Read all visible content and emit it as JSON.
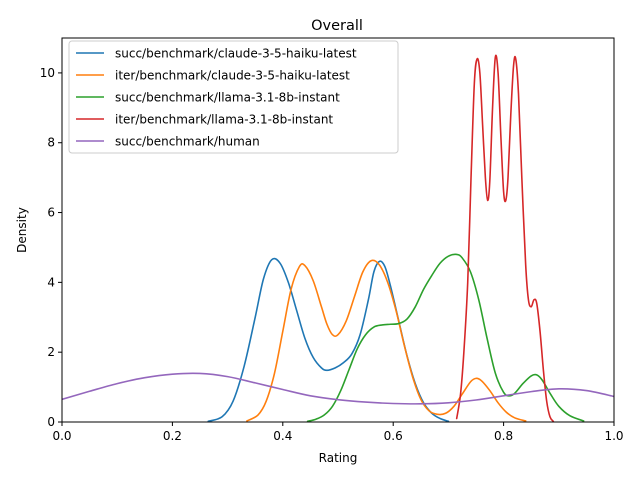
{
  "chart_data": {
    "type": "line",
    "title": "Overall",
    "xlabel": "Rating",
    "ylabel": "Density",
    "xlim": [
      0.0,
      1.0
    ],
    "ylim": [
      0,
      11
    ],
    "xticks": [
      "0.0",
      "0.2",
      "0.4",
      "0.6",
      "0.8",
      "1.0"
    ],
    "yticks": [
      "0",
      "2",
      "4",
      "6",
      "8",
      "10"
    ],
    "grid": false,
    "legend_position": "top-left",
    "series": [
      {
        "name": "succ/benchmark/claude-3-5-haiku-latest",
        "color": "#1f77b4",
        "points": [
          [
            0.265,
            0.02
          ],
          [
            0.29,
            0.15
          ],
          [
            0.31,
            0.6
          ],
          [
            0.33,
            1.6
          ],
          [
            0.35,
            3.0
          ],
          [
            0.365,
            4.1
          ],
          [
            0.38,
            4.65
          ],
          [
            0.395,
            4.55
          ],
          [
            0.41,
            4.0
          ],
          [
            0.425,
            3.2
          ],
          [
            0.44,
            2.4
          ],
          [
            0.455,
            1.85
          ],
          [
            0.47,
            1.55
          ],
          [
            0.48,
            1.48
          ],
          [
            0.495,
            1.55
          ],
          [
            0.51,
            1.7
          ],
          [
            0.525,
            1.95
          ],
          [
            0.54,
            2.5
          ],
          [
            0.555,
            3.5
          ],
          [
            0.565,
            4.3
          ],
          [
            0.575,
            4.6
          ],
          [
            0.585,
            4.45
          ],
          [
            0.595,
            3.9
          ],
          [
            0.61,
            2.9
          ],
          [
            0.625,
            1.9
          ],
          [
            0.64,
            1.1
          ],
          [
            0.655,
            0.55
          ],
          [
            0.67,
            0.25
          ],
          [
            0.685,
            0.1
          ],
          [
            0.7,
            0.02
          ]
        ]
      },
      {
        "name": "iter/benchmark/claude-3-5-haiku-latest",
        "color": "#ff7f0e",
        "points": [
          [
            0.335,
            0.03
          ],
          [
            0.355,
            0.2
          ],
          [
            0.37,
            0.6
          ],
          [
            0.385,
            1.4
          ],
          [
            0.4,
            2.6
          ],
          [
            0.415,
            3.8
          ],
          [
            0.43,
            4.45
          ],
          [
            0.44,
            4.48
          ],
          [
            0.455,
            4.05
          ],
          [
            0.47,
            3.3
          ],
          [
            0.48,
            2.8
          ],
          [
            0.49,
            2.5
          ],
          [
            0.5,
            2.5
          ],
          [
            0.515,
            2.9
          ],
          [
            0.53,
            3.6
          ],
          [
            0.545,
            4.3
          ],
          [
            0.56,
            4.62
          ],
          [
            0.575,
            4.5
          ],
          [
            0.59,
            4.0
          ],
          [
            0.605,
            3.2
          ],
          [
            0.62,
            2.2
          ],
          [
            0.635,
            1.3
          ],
          [
            0.65,
            0.65
          ],
          [
            0.665,
            0.32
          ],
          [
            0.68,
            0.22
          ],
          [
            0.695,
            0.25
          ],
          [
            0.71,
            0.45
          ],
          [
            0.725,
            0.8
          ],
          [
            0.74,
            1.15
          ],
          [
            0.75,
            1.25
          ],
          [
            0.76,
            1.18
          ],
          [
            0.775,
            0.9
          ],
          [
            0.79,
            0.55
          ],
          [
            0.805,
            0.28
          ],
          [
            0.82,
            0.12
          ],
          [
            0.84,
            0.03
          ]
        ]
      },
      {
        "name": "succ/benchmark/llama-3.1-8b-instant",
        "color": "#2ca02c",
        "points": [
          [
            0.445,
            0.02
          ],
          [
            0.46,
            0.08
          ],
          [
            0.475,
            0.2
          ],
          [
            0.49,
            0.45
          ],
          [
            0.505,
            0.9
          ],
          [
            0.52,
            1.5
          ],
          [
            0.535,
            2.1
          ],
          [
            0.55,
            2.5
          ],
          [
            0.565,
            2.72
          ],
          [
            0.58,
            2.78
          ],
          [
            0.595,
            2.8
          ],
          [
            0.61,
            2.82
          ],
          [
            0.625,
            2.95
          ],
          [
            0.64,
            3.3
          ],
          [
            0.655,
            3.8
          ],
          [
            0.67,
            4.2
          ],
          [
            0.685,
            4.55
          ],
          [
            0.7,
            4.75
          ],
          [
            0.715,
            4.8
          ],
          [
            0.725,
            4.7
          ],
          [
            0.74,
            4.3
          ],
          [
            0.755,
            3.5
          ],
          [
            0.77,
            2.4
          ],
          [
            0.785,
            1.4
          ],
          [
            0.8,
            0.85
          ],
          [
            0.81,
            0.75
          ],
          [
            0.82,
            0.82
          ],
          [
            0.835,
            1.1
          ],
          [
            0.85,
            1.32
          ],
          [
            0.86,
            1.35
          ],
          [
            0.87,
            1.2
          ],
          [
            0.885,
            0.8
          ],
          [
            0.9,
            0.45
          ],
          [
            0.92,
            0.18
          ],
          [
            0.945,
            0.03
          ]
        ]
      },
      {
        "name": "iter/benchmark/llama-3.1-8b-instant",
        "color": "#d62728",
        "points": [
          [
            0.715,
            0.1
          ],
          [
            0.722,
            0.8
          ],
          [
            0.728,
            2.0
          ],
          [
            0.735,
            4.0
          ],
          [
            0.741,
            7.0
          ],
          [
            0.747,
            9.7
          ],
          [
            0.752,
            10.4
          ],
          [
            0.757,
            10.0
          ],
          [
            0.762,
            8.5
          ],
          [
            0.767,
            7.0
          ],
          [
            0.771,
            6.35
          ],
          [
            0.775,
            6.9
          ],
          [
            0.78,
            9.0
          ],
          [
            0.785,
            10.45
          ],
          [
            0.79,
            10.0
          ],
          [
            0.795,
            8.2
          ],
          [
            0.8,
            6.6
          ],
          [
            0.804,
            6.35
          ],
          [
            0.808,
            7.0
          ],
          [
            0.813,
            8.8
          ],
          [
            0.818,
            10.2
          ],
          [
            0.822,
            10.4
          ],
          [
            0.827,
            9.4
          ],
          [
            0.833,
            7.0
          ],
          [
            0.84,
            4.5
          ],
          [
            0.845,
            3.5
          ],
          [
            0.85,
            3.3
          ],
          [
            0.855,
            3.5
          ],
          [
            0.86,
            3.4
          ],
          [
            0.866,
            2.6
          ],
          [
            0.872,
            1.5
          ],
          [
            0.878,
            0.6
          ],
          [
            0.884,
            0.15
          ],
          [
            0.89,
            0.02
          ]
        ]
      },
      {
        "name": "succ/benchmark/human",
        "color": "#9467bd",
        "points": [
          [
            0.0,
            0.65
          ],
          [
            0.05,
            0.88
          ],
          [
            0.1,
            1.1
          ],
          [
            0.15,
            1.27
          ],
          [
            0.2,
            1.37
          ],
          [
            0.25,
            1.39
          ],
          [
            0.3,
            1.3
          ],
          [
            0.35,
            1.12
          ],
          [
            0.4,
            0.93
          ],
          [
            0.45,
            0.75
          ],
          [
            0.5,
            0.64
          ],
          [
            0.55,
            0.57
          ],
          [
            0.6,
            0.53
          ],
          [
            0.65,
            0.52
          ],
          [
            0.7,
            0.55
          ],
          [
            0.75,
            0.63
          ],
          [
            0.8,
            0.75
          ],
          [
            0.85,
            0.87
          ],
          [
            0.9,
            0.95
          ],
          [
            0.95,
            0.9
          ],
          [
            1.0,
            0.73
          ]
        ]
      }
    ]
  }
}
